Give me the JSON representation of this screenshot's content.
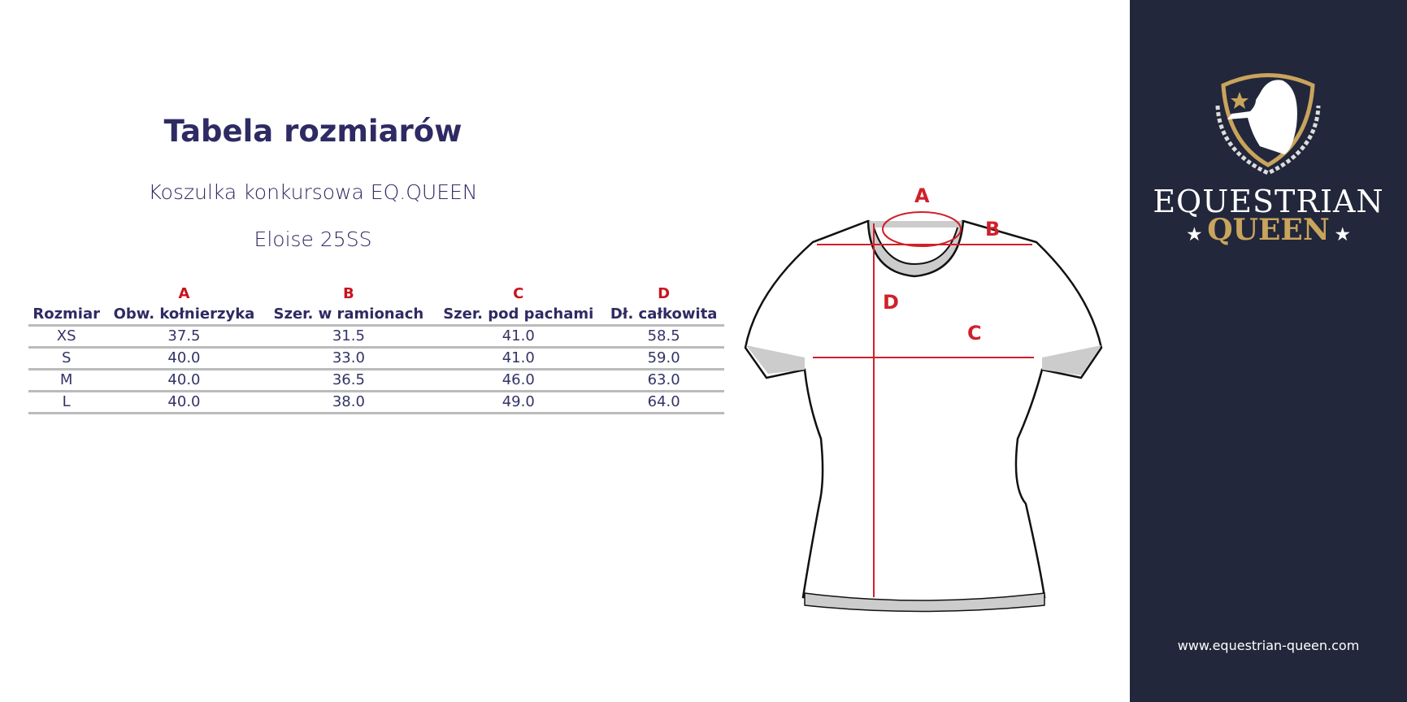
{
  "title": "Tabela rozmiarów",
  "subtitle": "Koszulka konkursowa EQ.QUEEN",
  "model": "Eloise 25SS",
  "table": {
    "letters": [
      "",
      "A",
      "B",
      "C",
      "D"
    ],
    "headers": [
      "Rozmiar",
      "Obw. kołnierzyka",
      "Szer. w ramionach",
      "Szer. pod pachami",
      "Dł. całkowita"
    ],
    "rows": [
      [
        "XS",
        "37.5",
        "31.5",
        "41.0",
        "58.5"
      ],
      [
        "S",
        "40.0",
        "33.0",
        "41.0",
        "59.0"
      ],
      [
        "M",
        "40.0",
        "36.5",
        "46.0",
        "63.0"
      ],
      [
        "L",
        "40.0",
        "38.0",
        "49.0",
        "64.0"
      ]
    ]
  },
  "diagram": {
    "labels": [
      "A",
      "B",
      "C",
      "D"
    ]
  },
  "brand": {
    "line1": "EQUESTRIAN",
    "line2": "QUEEN",
    "url": "www.equestrian-queen.com"
  },
  "colors": {
    "navy": "#22273b",
    "gold": "#c9a45c",
    "text": "#2e2a63",
    "accent": "#c8141e"
  }
}
